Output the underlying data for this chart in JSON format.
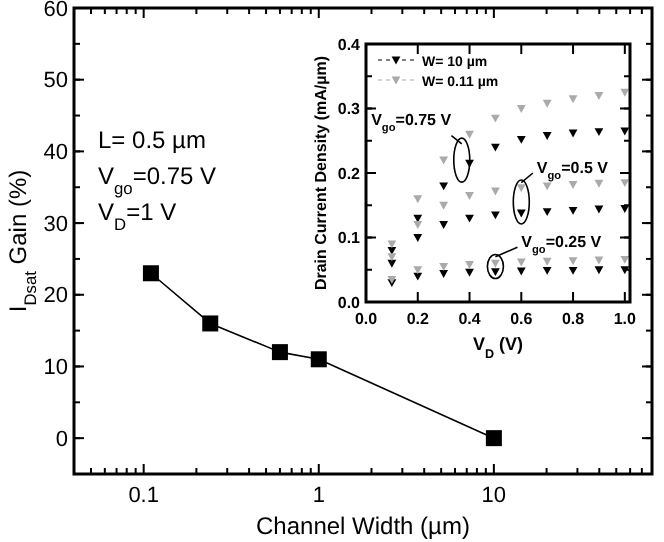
{
  "chart_data": [
    {
      "type": "line",
      "xlabel": "Channel Width (µm)",
      "ylabel": "I$_{Dsat}$ Gain (%)",
      "log": "x",
      "marker": "square",
      "line_style": "solid",
      "grid": false,
      "xlim": [
        0.04,
        80
      ],
      "ylim": [
        -5,
        60
      ],
      "xticks": [
        0.1,
        1,
        10
      ],
      "yticks": [
        0,
        10,
        20,
        30,
        40,
        50,
        60
      ],
      "x": [
        0.11,
        0.24,
        0.6,
        1,
        10
      ],
      "series": [
        {
          "color": "#000000",
          "values": [
            23,
            16,
            12,
            11,
            0
          ]
        }
      ],
      "annotations": [
        "L= 0.5 µm",
        "V$_{go}$=0.75 V",
        "V$_{D}$=1 V"
      ]
    },
    {
      "type": "scatter",
      "xlabel": "V$_{D}$ (V)",
      "ylabel": "Drain Current Density (mA/µm)",
      "marker": "triangle",
      "legend": "top left",
      "grid": false,
      "xlim": [
        0,
        1.02
      ],
      "ylim": [
        0,
        0.4
      ],
      "xticks": [
        {
          "value": 0,
          "label": "0.0"
        },
        {
          "value": 0.2,
          "label": "0.2"
        },
        {
          "value": 0.4,
          "label": "0.4"
        },
        {
          "value": 0.6,
          "label": "0.6"
        },
        {
          "value": 0.8,
          "label": "0.8"
        },
        {
          "value": 1,
          "label": "1.0"
        }
      ],
      "yticks": [
        {
          "value": 0,
          "label": "0.0"
        },
        {
          "value": 0.1,
          "label": "0.1"
        },
        {
          "value": 0.2,
          "label": "0.2"
        },
        {
          "value": 0.3,
          "label": "0.3"
        },
        {
          "value": 0.4,
          "label": "0.4"
        }
      ],
      "x": [
        0.1,
        0.2,
        0.3,
        0.4,
        0.5,
        0.6,
        0.7,
        0.8,
        0.9,
        1
      ],
      "series": [
        {
          "name": "W= 10 µm",
          "color": "#000000",
          "values": [
            0.08,
            0.13,
            0.18,
            0.215,
            0.24,
            0.252,
            0.258,
            0.262,
            0.264,
            0.265
          ]
        },
        {
          "name": "W= 0.11 µm",
          "color": "#aaaaaa",
          "values": [
            0.09,
            0.16,
            0.22,
            0.26,
            0.285,
            0.3,
            0.308,
            0.315,
            0.32,
            0.325
          ]
        },
        {
          "color": "#000000",
          "values": [
            0.06,
            0.1,
            0.12,
            0.13,
            0.135,
            0.138,
            0.14,
            0.142,
            0.144,
            0.145
          ]
        },
        {
          "color": "#aaaaaa",
          "values": [
            0.07,
            0.12,
            0.15,
            0.165,
            0.172,
            0.177,
            0.18,
            0.182,
            0.184,
            0.185
          ]
        },
        {
          "color": "#000000",
          "values": [
            0.03,
            0.04,
            0.044,
            0.046,
            0.047,
            0.048,
            0.049,
            0.049,
            0.05,
            0.05
          ]
        },
        {
          "color": "#aaaaaa",
          "values": [
            0.035,
            0.05,
            0.055,
            0.058,
            0.06,
            0.062,
            0.063,
            0.064,
            0.065,
            0.066
          ]
        }
      ],
      "annotations": [
        "V$_{go}$=0.75 V",
        "V$_{go}$=0.5 V",
        "V$_{go}$=0.25 V"
      ]
    }
  ]
}
